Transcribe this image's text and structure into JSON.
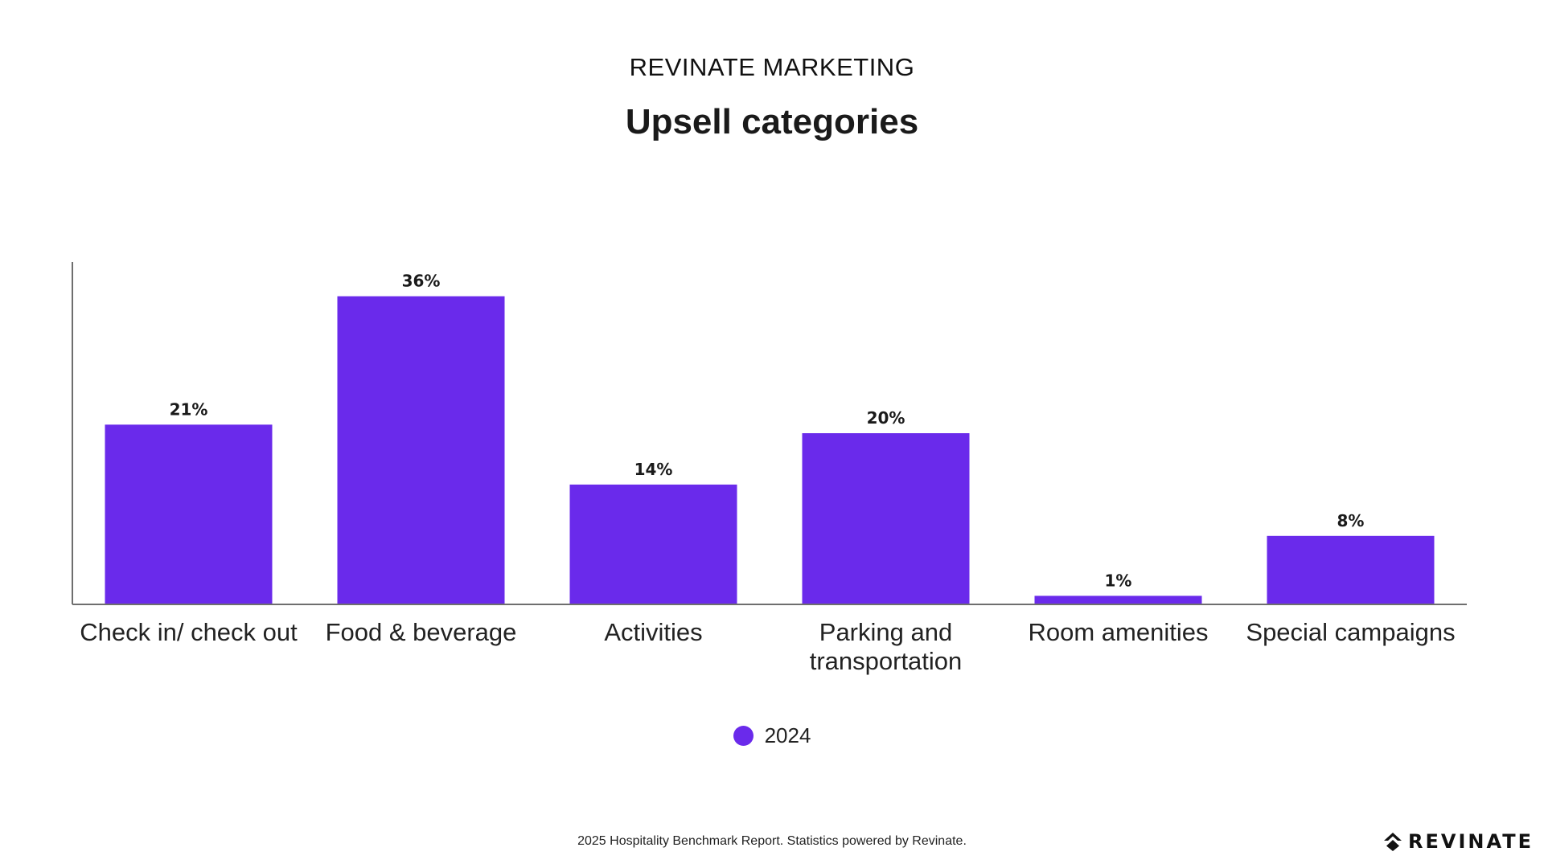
{
  "header": {
    "supertitle": "REVINATE MARKETING",
    "title": "Upsell categories"
  },
  "chart_data": {
    "type": "bar",
    "title": "Upsell categories",
    "categories": [
      "Check in/ check out",
      "Food & beverage",
      "Activities",
      "Parking and transportation",
      "Room amenities",
      "Special campaigns"
    ],
    "series": [
      {
        "name": "2024",
        "values": [
          21,
          36,
          14,
          20,
          1,
          8
        ]
      }
    ],
    "data_labels": [
      "21%",
      "36%",
      "14%",
      "20%",
      "1%",
      "8%"
    ],
    "ylim": [
      0,
      40
    ],
    "grid": false,
    "legend_position": "bottom",
    "bar_color": "#6A2AEB"
  },
  "legend": {
    "label": "2024",
    "color": "#6A2AEB"
  },
  "footer": {
    "text": "2025 Hospitality Benchmark Report. Statistics powered by Revinate."
  },
  "logo": {
    "text": "REVINATE",
    "icon": "revinate-logo-icon"
  }
}
